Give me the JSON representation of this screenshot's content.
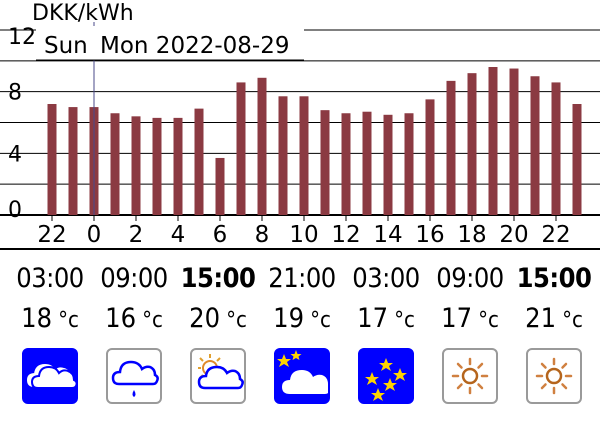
{
  "header": {
    "unit_label": "DKK/kWh",
    "day_label": "Sun",
    "date_label": "Mon 2022-08-29"
  },
  "chart_data": {
    "type": "bar",
    "title": "",
    "ylabel": "DKK/kWh",
    "ylim": [
      0,
      12
    ],
    "yticks": [
      "0",
      "4",
      "8",
      "12"
    ],
    "xtick_labels": [
      "22",
      "0",
      "2",
      "4",
      "6",
      "8",
      "10",
      "12",
      "14",
      "16",
      "18",
      "20",
      "22"
    ],
    "hours": [
      22,
      23,
      0,
      1,
      2,
      3,
      4,
      5,
      6,
      7,
      8,
      9,
      10,
      11,
      12,
      13,
      14,
      15,
      16,
      17,
      18,
      19,
      20,
      21,
      22,
      23
    ],
    "values": [
      7.2,
      7.0,
      7.0,
      6.6,
      6.4,
      6.3,
      6.3,
      6.9,
      3.7,
      8.6,
      8.9,
      7.7,
      7.7,
      6.8,
      6.6,
      6.7,
      6.5,
      6.6,
      7.5,
      8.7,
      9.2,
      9.6,
      9.5,
      9.0,
      8.6,
      7.2
    ],
    "grid": true,
    "bar_color": "#8b3a42"
  },
  "forecast": [
    {
      "time": "03:00",
      "temp": "18",
      "unit": "°c",
      "bold": false,
      "icon": "cloud-icon",
      "bg": "blue"
    },
    {
      "time": "09:00",
      "temp": "16",
      "unit": "°c",
      "bold": false,
      "icon": "rain-cloud-icon",
      "bg": "white"
    },
    {
      "time": "15:00",
      "temp": "20",
      "unit": "°c",
      "bold": true,
      "icon": "partly-sunny-icon",
      "bg": "white"
    },
    {
      "time": "21:00",
      "temp": "19",
      "unit": "°c",
      "bold": false,
      "icon": "cloudy-night-icon",
      "bg": "blue"
    },
    {
      "time": "03:00",
      "temp": "17",
      "unit": "°c",
      "bold": false,
      "icon": "clear-night-icon",
      "bg": "blue"
    },
    {
      "time": "09:00",
      "temp": "17",
      "unit": "°c",
      "bold": false,
      "icon": "sun-icon",
      "bg": "white"
    },
    {
      "time": "15:00",
      "temp": "21",
      "unit": "°c",
      "bold": true,
      "icon": "sun-icon",
      "bg": "white"
    }
  ]
}
